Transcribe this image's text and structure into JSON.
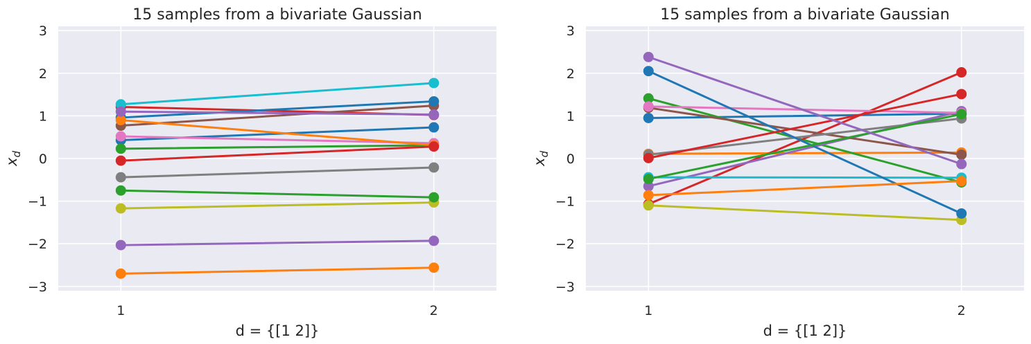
{
  "chart_data": [
    {
      "type": "line",
      "title": "15 samples from a bivariate Gaussian",
      "xlabel": "d = {[1 2]}",
      "ylabel_base": "x",
      "ylabel_sub": "d",
      "x": [
        1,
        2
      ],
      "x_ticks": [
        "1",
        "2"
      ],
      "xlim": [
        0.8,
        2.2
      ],
      "ylim": [
        -3.1,
        3.1
      ],
      "y_ticks": [
        "−3",
        "−2",
        "−1",
        "0",
        "1",
        "2",
        "3"
      ],
      "grid": true,
      "series": [
        {
          "color": "#1f77b4",
          "values": [
            0.43,
            0.73
          ]
        },
        {
          "color": "#ff7f0e",
          "values": [
            -2.7,
            -2.56
          ]
        },
        {
          "color": "#2ca02c",
          "values": [
            0.23,
            0.31
          ]
        },
        {
          "color": "#d62728",
          "values": [
            1.21,
            1.02
          ]
        },
        {
          "color": "#9467bd",
          "values": [
            -2.03,
            -1.93
          ]
        },
        {
          "color": "#8c564b",
          "values": [
            0.77,
            1.24
          ]
        },
        {
          "color": "#e377c2",
          "values": [
            0.52,
            0.36
          ]
        },
        {
          "color": "#7f7f7f",
          "values": [
            -0.44,
            -0.21
          ]
        },
        {
          "color": "#bcbd22",
          "values": [
            -1.17,
            -1.03
          ]
        },
        {
          "color": "#17becf",
          "values": [
            1.27,
            1.77
          ]
        },
        {
          "color": "#1f77b4",
          "values": [
            0.96,
            1.34
          ]
        },
        {
          "color": "#ff7f0e",
          "values": [
            0.9,
            0.31
          ]
        },
        {
          "color": "#2ca02c",
          "values": [
            -0.75,
            -0.91
          ]
        },
        {
          "color": "#d62728",
          "values": [
            -0.05,
            0.28
          ]
        },
        {
          "color": "#9467bd",
          "values": [
            1.1,
            1.03
          ]
        }
      ]
    },
    {
      "type": "line",
      "title": "15 samples from a bivariate Gaussian",
      "xlabel": "d = {[1 2]}",
      "ylabel_base": "x",
      "ylabel_sub": "d",
      "x": [
        1,
        2
      ],
      "x_ticks": [
        "1",
        "2"
      ],
      "xlim": [
        0.8,
        2.2
      ],
      "ylim": [
        -3.1,
        3.1
      ],
      "y_ticks": [
        "−3",
        "−2",
        "−1",
        "0",
        "1",
        "2",
        "3"
      ],
      "grid": true,
      "series": [
        {
          "color": "#1f77b4",
          "values": [
            0.95,
            1.05
          ]
        },
        {
          "color": "#ff7f0e",
          "values": [
            0.11,
            0.14
          ]
        },
        {
          "color": "#2ca02c",
          "values": [
            1.41,
            -0.56
          ]
        },
        {
          "color": "#d62728",
          "values": [
            -1.07,
            2.02
          ]
        },
        {
          "color": "#9467bd",
          "values": [
            -0.65,
            1.11
          ]
        },
        {
          "color": "#8c564b",
          "values": [
            1.19,
            0.09
          ]
        },
        {
          "color": "#e377c2",
          "values": [
            1.22,
            1.07
          ]
        },
        {
          "color": "#7f7f7f",
          "values": [
            0.09,
            0.94
          ]
        },
        {
          "color": "#bcbd22",
          "values": [
            -1.1,
            -1.44
          ]
        },
        {
          "color": "#17becf",
          "values": [
            -0.44,
            -0.45
          ]
        },
        {
          "color": "#1f77b4",
          "values": [
            2.05,
            -1.29
          ]
        },
        {
          "color": "#ff7f0e",
          "values": [
            -0.86,
            -0.53
          ]
        },
        {
          "color": "#2ca02c",
          "values": [
            -0.48,
            1.04
          ]
        },
        {
          "color": "#d62728",
          "values": [
            0.01,
            1.51
          ]
        },
        {
          "color": "#9467bd",
          "values": [
            2.38,
            -0.13
          ]
        }
      ]
    }
  ]
}
